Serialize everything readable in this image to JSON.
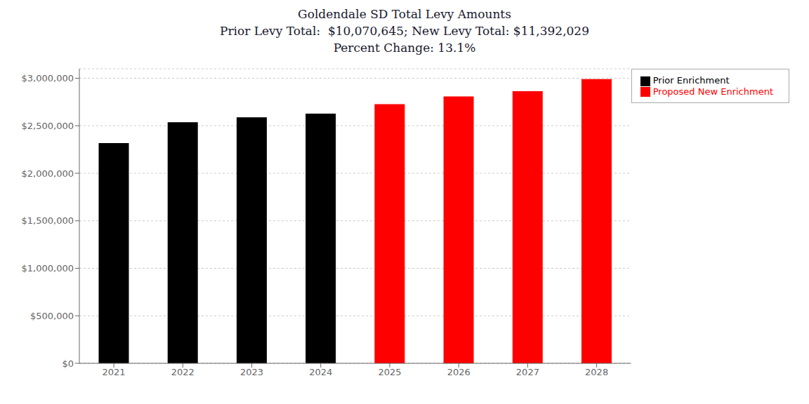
{
  "chart_data": {
    "type": "bar",
    "title": "Goldendale SD Total Levy Amounts\nPrior Levy Total:  $10,070,645; New Levy Total: $11,392,029\nPercent Change: 13.1%",
    "categories": [
      "2021",
      "2022",
      "2023",
      "2024",
      "2025",
      "2026",
      "2027",
      "2028"
    ],
    "series": [
      {
        "name": "Prior Enrichment",
        "color": "#000000",
        "values": [
          2317582,
          2537555,
          2588014,
          2627494,
          null,
          null,
          null,
          null
        ]
      },
      {
        "name": "Proposed New Enrichment",
        "color": "#ff0000",
        "values": [
          null,
          null,
          null,
          null,
          2727432,
          2808065,
          2864523,
          2992009
        ]
      }
    ],
    "stacked": true,
    "ylim": [
      0,
      3100000
    ],
    "yticks": [
      {
        "value": 0,
        "label": "$0"
      },
      {
        "value": 500000,
        "label": "$500,000"
      },
      {
        "value": 1000000,
        "label": "$1,000,000"
      },
      {
        "value": 1500000,
        "label": "$1,500,000"
      },
      {
        "value": 2000000,
        "label": "$2,000,000"
      },
      {
        "value": 2500000,
        "label": "$2,500,000"
      },
      {
        "value": 3000000,
        "label": "$3,000,000"
      }
    ],
    "grid": true,
    "legend": "upper right"
  }
}
